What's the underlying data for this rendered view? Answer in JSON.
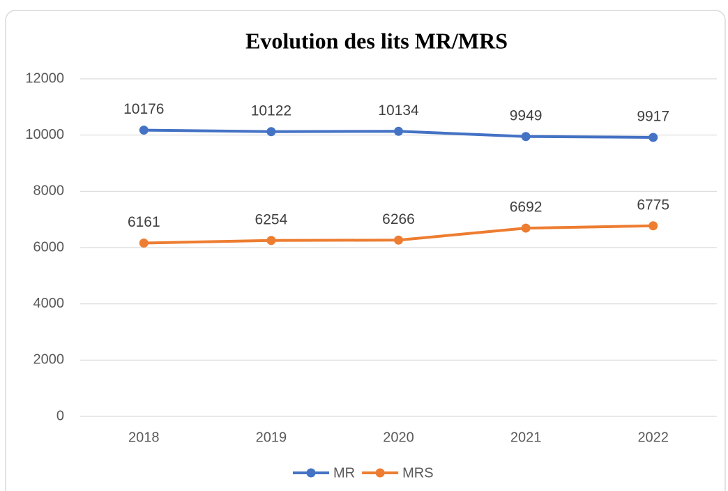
{
  "chart_data": {
    "type": "line",
    "title": "Evolution des lits MR/MRS",
    "categories": [
      "2018",
      "2019",
      "2020",
      "2021",
      "2022"
    ],
    "series": [
      {
        "name": "MR",
        "color": "#4472c4",
        "values": [
          10176,
          10122,
          10134,
          9949,
          9917
        ]
      },
      {
        "name": "MRS",
        "color": "#ed7d31",
        "values": [
          6161,
          6254,
          6266,
          6692,
          6775
        ]
      }
    ],
    "ylim": [
      0,
      12000
    ],
    "yticks": [
      0,
      2000,
      4000,
      6000,
      8000,
      10000,
      12000
    ],
    "grid": true,
    "legend": "bottom",
    "data_labels": true
  }
}
